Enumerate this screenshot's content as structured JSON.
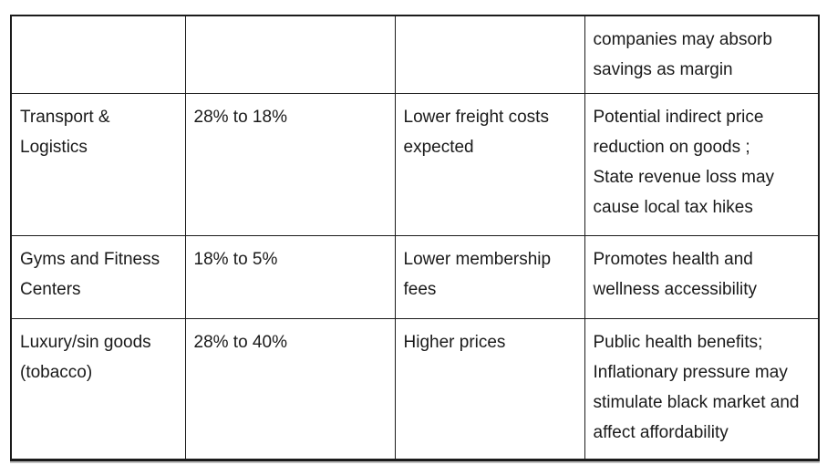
{
  "page": {
    "background_color": "#ffffff",
    "text_color": "#1a1a1a",
    "border_color": "#1b1b1b"
  },
  "table": {
    "description": "Tax rate change impact table, top row cropped by viewport",
    "rows": [
      {
        "cells": [
          "",
          "",
          "",
          "companies may absorb\nsavings as margin"
        ]
      },
      {
        "cells": [
          "Transport & Logistics",
          "28% to 18%",
          "Lower freight costs\nexpected",
          "Potential indirect price\nreduction on goods ;\nState revenue loss may\ncause local tax hikes"
        ]
      },
      {
        "cells": [
          "Gyms and Fitness\nCenters",
          "18% to 5%",
          "Lower membership\nfees",
          "Promotes health and\nwellness accessibility"
        ]
      },
      {
        "cells": [
          "Luxury/sin goods\n(tobacco)",
          "28% to 40%",
          "Higher prices",
          "Public health benefits;\nInflationary pressure may\nstimulate black market and\naffect affordability"
        ]
      }
    ]
  }
}
